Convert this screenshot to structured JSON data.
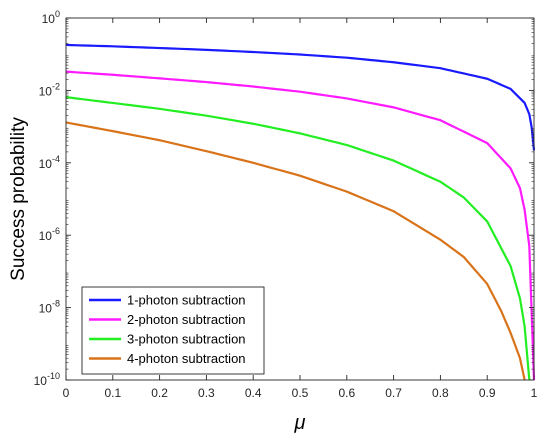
{
  "chart_data": {
    "type": "line",
    "xlabel": "μ",
    "ylabel": "Success probability",
    "xlim": [
      0,
      1
    ],
    "ylim": [
      1e-10,
      1
    ],
    "yscale": "log",
    "grid": false,
    "legend_position": "bottom-left",
    "x_ticks": [
      "0",
      "0.1",
      "0.2",
      "0.3",
      "0.4",
      "0.5",
      "0.6",
      "0.7",
      "0.8",
      "0.9",
      "1"
    ],
    "y_ticks": [
      {
        "base": "10",
        "exp": "0",
        "value": 1
      },
      {
        "base": "10",
        "exp": "-2",
        "value": 0.01
      },
      {
        "base": "10",
        "exp": "-4",
        "value": 0.0001
      },
      {
        "base": "10",
        "exp": "-6",
        "value": 1e-06
      },
      {
        "base": "10",
        "exp": "-8",
        "value": 1e-08
      },
      {
        "base": "10",
        "exp": "-10",
        "value": 1e-10
      }
    ],
    "series": [
      {
        "name": "1-photon subtraction",
        "color": "#1a1aff",
        "x": [
          0,
          0.1,
          0.2,
          0.3,
          0.4,
          0.5,
          0.6,
          0.7,
          0.8,
          0.9,
          0.95,
          0.98,
          0.99,
          0.995,
          1
        ],
        "y": [
          0.18,
          0.165,
          0.148,
          0.132,
          0.115,
          0.098,
          0.08,
          0.06,
          0.041,
          0.021,
          0.011,
          0.0045,
          0.0022,
          0.00095,
          0.00022
        ]
      },
      {
        "name": "2-photon subtraction",
        "color": "#ff1aff",
        "x": [
          0,
          0.1,
          0.2,
          0.3,
          0.4,
          0.5,
          0.6,
          0.7,
          0.8,
          0.9,
          0.95,
          0.97,
          0.98,
          0.99,
          1
        ],
        "y": [
          0.033,
          0.027,
          0.0215,
          0.017,
          0.0128,
          0.0092,
          0.006,
          0.0034,
          0.0015,
          0.00035,
          7e-05,
          2e-05,
          5e-06,
          5e-07,
          1e-10
        ]
      },
      {
        "name": "3-photon subtraction",
        "color": "#22ee22",
        "x": [
          0,
          0.1,
          0.2,
          0.3,
          0.4,
          0.5,
          0.6,
          0.7,
          0.8,
          0.85,
          0.9,
          0.95,
          0.97,
          0.98,
          0.99
        ],
        "y": [
          0.0065,
          0.0045,
          0.0031,
          0.002,
          0.0012,
          0.00065,
          0.00031,
          0.000115,
          3e-05,
          1.1e-05,
          2.4e-06,
          1.4e-07,
          1.8e-08,
          3e-09,
          1e-10
        ]
      },
      {
        "name": "4-photon subtraction",
        "color": "#d9731a",
        "x": [
          0,
          0.1,
          0.2,
          0.3,
          0.4,
          0.5,
          0.6,
          0.7,
          0.8,
          0.85,
          0.9,
          0.93,
          0.95,
          0.97,
          0.98
        ],
        "y": [
          0.0013,
          0.00075,
          0.00042,
          0.00021,
          0.0001,
          4.4e-05,
          1.6e-05,
          4.6e-06,
          7.5e-07,
          2.5e-07,
          4.5e-08,
          8e-09,
          2e-09,
          4e-10,
          1e-10
        ]
      }
    ]
  }
}
